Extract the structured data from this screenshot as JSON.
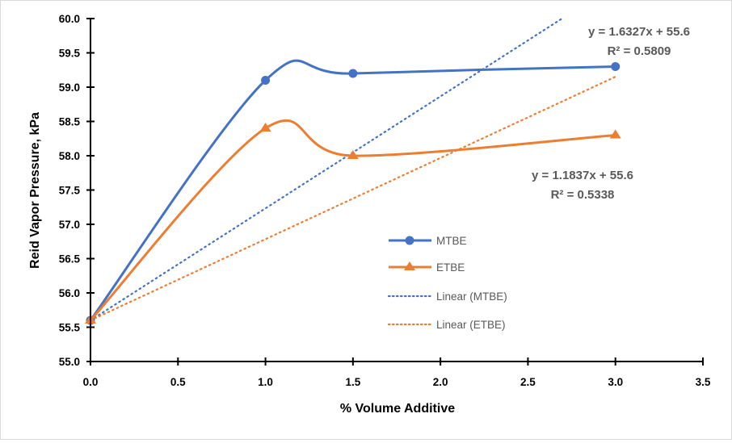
{
  "chart_data": {
    "type": "line",
    "title": "",
    "xlabel": "% Volume Additive",
    "ylabel": "Reid Vapor Pressure, kPa",
    "xlim": [
      0.0,
      3.5
    ],
    "ylim": [
      55.0,
      60.0
    ],
    "xticks": [
      "0.0",
      "0.5",
      "1.0",
      "1.5",
      "2.0",
      "2.5",
      "3.0",
      "3.5"
    ],
    "yticks": [
      "55.0",
      "55.5",
      "56.0",
      "56.5",
      "57.0",
      "57.5",
      "58.0",
      "58.5",
      "59.0",
      "59.5",
      "60.0"
    ],
    "grid": false,
    "legend_position": "center-right",
    "series": [
      {
        "name": "MTBE",
        "color": "#4472C4",
        "marker": "circle",
        "smooth": true,
        "x": [
          0.0,
          1.0,
          1.5,
          3.0
        ],
        "y": [
          55.6,
          59.1,
          59.2,
          59.3
        ]
      },
      {
        "name": "ETBE",
        "color": "#ED7D31",
        "marker": "triangle",
        "smooth": true,
        "x": [
          0.0,
          1.0,
          1.5,
          3.0
        ],
        "y": [
          55.6,
          58.4,
          58.0,
          58.3
        ]
      }
    ],
    "trendlines": [
      {
        "name": "Linear (MTBE)",
        "color": "#4472C4",
        "style": "dotted",
        "slope": 1.6327,
        "intercept": 55.6,
        "equation": "y = 1.6327x + 55.6",
        "r_squared": "R² = 0.5809"
      },
      {
        "name": "Linear (ETBE)",
        "color": "#ED7D31",
        "style": "dotted",
        "slope": 1.1837,
        "intercept": 55.6,
        "equation": "y = 1.1837x + 55.6",
        "r_squared": "R² = 0.5338"
      }
    ],
    "legend": [
      "MTBE",
      "ETBE",
      "Linear (MTBE)",
      "Linear (ETBE)"
    ]
  }
}
